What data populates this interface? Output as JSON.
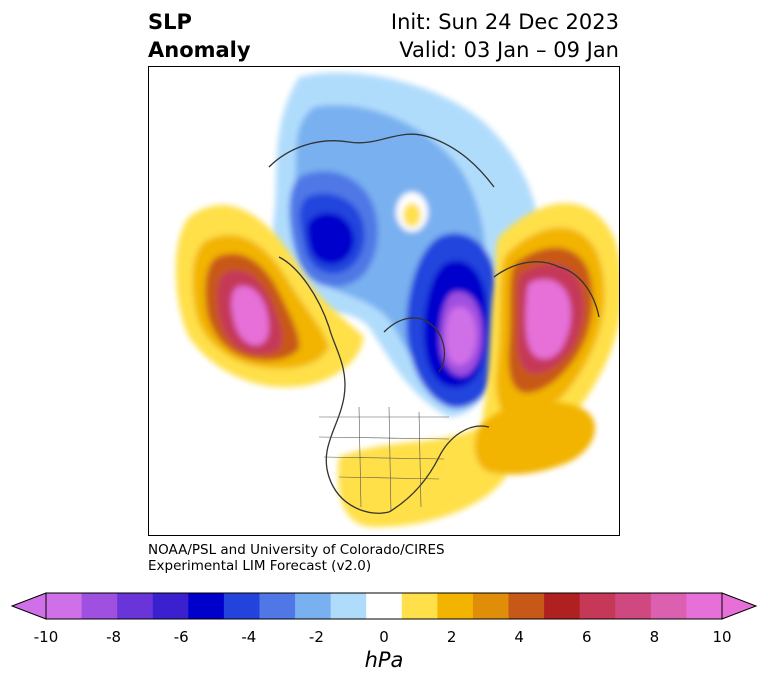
{
  "title": {
    "left_line1": "SLP",
    "left_line2": "Anomaly",
    "right_line1": "Init: Sun 24 Dec 2023",
    "right_line2": "Valid: 03 Jan – 09 Jan"
  },
  "credit": {
    "line1": "NOAA/PSL and University of Colorado/CIRES",
    "line2": "Experimental LIM Forecast (v2.0)"
  },
  "colorbar": {
    "unit": "hPa",
    "tick_labels": [
      "-10",
      "-8",
      "-6",
      "-4",
      "-2",
      "0",
      "2",
      "4",
      "6",
      "8",
      "10"
    ],
    "colors": [
      "#d070e8",
      "#a050e0",
      "#6a35d8",
      "#3b20d0",
      "#0000cc",
      "#2244dd",
      "#4f78e6",
      "#78b0f0",
      "#b0dcfc",
      "#ffffff",
      "#ffe04a",
      "#f2b400",
      "#e08e0a",
      "#c85818",
      "#b02020",
      "#c53858",
      "#d04880",
      "#dc60b0",
      "#e670d8"
    ],
    "extend_low_color": "#d070e8",
    "extend_high_color": "#e670d8"
  }
}
